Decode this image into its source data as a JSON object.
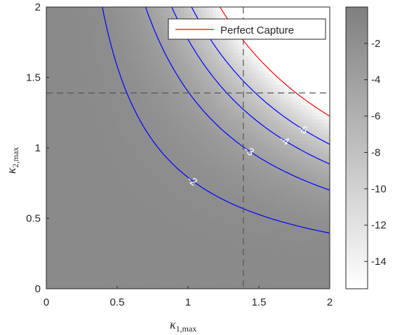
{
  "chart_data": {
    "type": "heatmap",
    "xlabel": "κ",
    "xlabel_sub": "1,max",
    "ylabel": "κ",
    "ylabel_sub": "2,max",
    "xlim": [
      0,
      2
    ],
    "ylim": [
      0,
      2
    ],
    "xticks": [
      "0",
      "0.5",
      "1",
      "1.5",
      "2"
    ],
    "yticks": [
      "0",
      "0.5",
      "1",
      "1.5",
      "2"
    ],
    "colorbar": {
      "range": [
        -15.5,
        0
      ],
      "ticks": [
        "-2",
        "-4",
        "-6",
        "-8",
        "-10",
        "-12",
        "-14"
      ],
      "colormap": "gray",
      "low_color": "#ffffff",
      "high_color": "#7f7f7f"
    },
    "contours": [
      {
        "level": -2,
        "label": "-2",
        "product": 0.79
      },
      {
        "level": -3,
        "label": "-3",
        "product": 1.4
      },
      {
        "level": -4,
        "label": "-4",
        "product": 1.77
      },
      {
        "level": -5,
        "label": "-5",
        "product": 2.05
      }
    ],
    "perfect_capture_product": 2.45,
    "reference_lines": {
      "x": 1.39,
      "y": 1.39
    },
    "legend": {
      "label": "Perfect Capture",
      "location": "top-right"
    },
    "colors": {
      "contour": "#0000ff",
      "perfect_capture": "#ff0000",
      "reference": "#555555"
    }
  }
}
